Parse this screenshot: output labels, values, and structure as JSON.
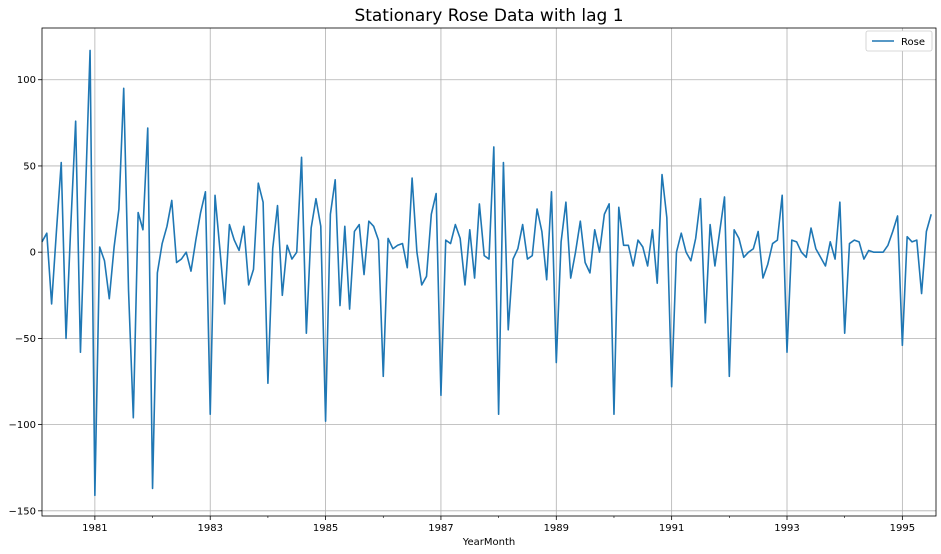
{
  "chart_data": {
    "type": "line",
    "title": "Stationary Rose Data with lag 1",
    "xlabel": "YearMonth",
    "ylabel": "",
    "xlim": [
      1980.0833,
      1995.5833
    ],
    "ylim": [
      -153,
      130
    ],
    "grid": true,
    "legend_position": "top-right",
    "x_ticks": [
      1981,
      1983,
      1985,
      1987,
      1989,
      1991,
      1993,
      1995
    ],
    "y_ticks": [
      100,
      50,
      0,
      -50,
      -100,
      -150
    ],
    "y_tick_labels": [
      "100",
      "50",
      "0",
      "−50",
      "−100",
      "−150"
    ],
    "x_start": "1980-02",
    "x_step_months": 1,
    "series": [
      {
        "name": "Rose",
        "color": "#1f77b4",
        "values": [
          6,
          11,
          -30,
          12,
          52,
          -50,
          16,
          76,
          -58,
          30,
          117,
          -141,
          3,
          -5,
          -27,
          3,
          25,
          95,
          -22,
          -96,
          23,
          13,
          72,
          -137,
          -12,
          5,
          15,
          30,
          -6,
          -4,
          0,
          -11,
          7,
          23,
          35,
          -94,
          33,
          2,
          -30,
          16,
          7,
          1,
          15,
          -19,
          -10,
          40,
          29,
          -76,
          2,
          27,
          -25,
          4,
          -4,
          0,
          55,
          -47,
          14,
          31,
          15,
          -98,
          22,
          42,
          -31,
          15,
          -33,
          12,
          16,
          -13,
          18,
          15,
          7,
          -72,
          8,
          2,
          4,
          5,
          -9,
          43,
          0,
          -19,
          -14,
          22,
          34,
          -83,
          7,
          5,
          16,
          8,
          -19,
          13,
          -15,
          28,
          -2,
          -4,
          61,
          -94,
          52,
          -45,
          -4,
          2,
          16,
          -4,
          -2,
          25,
          12,
          -16,
          35,
          -64,
          6,
          29,
          -15,
          0,
          18,
          -6,
          -12,
          13,
          0,
          22,
          28,
          -94,
          26,
          4,
          4,
          -8,
          7,
          3,
          -8,
          13,
          -18,
          45,
          20,
          -78,
          0,
          11,
          0,
          -5,
          8,
          31,
          -41,
          16,
          -8,
          12,
          32,
          -72,
          13,
          8,
          -3,
          0,
          2,
          12,
          -15,
          -7,
          5,
          7,
          33,
          -58,
          7,
          6,
          0,
          -3,
          14,
          2,
          -3,
          -8,
          6,
          -4,
          29,
          -47,
          5,
          7,
          6,
          -4,
          1,
          0,
          0,
          0,
          4,
          12,
          21,
          -54,
          9,
          6,
          7,
          -24,
          12,
          22
        ]
      }
    ]
  }
}
